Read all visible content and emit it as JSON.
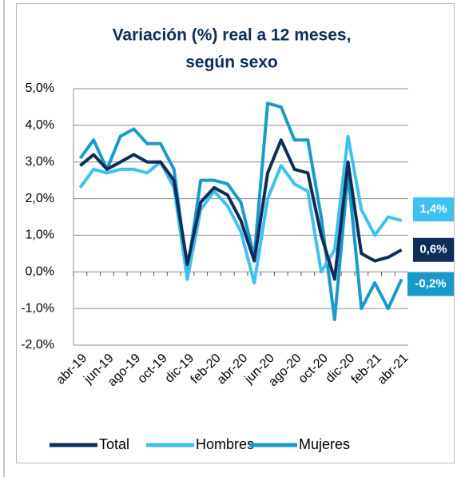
{
  "chart_data": {
    "type": "line",
    "title": [
      "Variación (%) real a 12 meses,",
      "según sexo"
    ],
    "categories": [
      "abr-19",
      null,
      "jun-19",
      null,
      "ago-19",
      null,
      "oct-19",
      null,
      "dic-19",
      null,
      "feb-20",
      null,
      "abr-20",
      null,
      "jun-20",
      null,
      "ago-20",
      null,
      "oct-20",
      null,
      "dic-20",
      null,
      "feb-21",
      null,
      "abr-21"
    ],
    "series": [
      {
        "name": "Total",
        "color": "#0d2d5a",
        "values": [
          2.9,
          3.2,
          2.8,
          3.0,
          3.2,
          3.0,
          3.0,
          2.5,
          0.2,
          1.9,
          2.3,
          2.1,
          1.4,
          0.3,
          2.7,
          3.6,
          2.8,
          2.7,
          1.0,
          -0.2,
          3.0,
          0.5,
          0.3,
          0.4,
          0.6
        ],
        "value_labels": [
          null,
          null,
          null,
          null,
          null,
          null,
          null,
          null,
          null,
          null,
          null,
          null,
          null,
          null,
          null,
          null,
          null,
          null,
          null,
          null,
          null,
          null,
          null,
          null,
          "0,6%"
        ]
      },
      {
        "name": "Hombres",
        "color": "#3fc1f0",
        "values": [
          2.3,
          2.8,
          2.7,
          2.8,
          2.8,
          2.7,
          3.0,
          2.3,
          -0.2,
          1.7,
          2.2,
          1.8,
          1.1,
          -0.3,
          2.0,
          2.9,
          2.4,
          2.2,
          0.0,
          0.6,
          3.7,
          1.7,
          1.0,
          1.5,
          1.4
        ],
        "value_labels": [
          null,
          null,
          null,
          null,
          null,
          null,
          null,
          null,
          null,
          null,
          null,
          null,
          null,
          null,
          null,
          null,
          null,
          null,
          null,
          null,
          null,
          null,
          null,
          null,
          "1,4%"
        ]
      },
      {
        "name": "Mujeres",
        "color": "#1a9ac9",
        "values": [
          3.1,
          3.6,
          2.8,
          3.7,
          3.9,
          3.5,
          3.5,
          2.8,
          0.0,
          2.5,
          2.5,
          2.4,
          1.9,
          0.4,
          4.6,
          4.5,
          3.6,
          3.6,
          1.5,
          -1.3,
          2.7,
          -1.0,
          -0.3,
          -1.0,
          -0.2
        ],
        "value_labels": [
          null,
          null,
          null,
          null,
          null,
          null,
          null,
          null,
          null,
          null,
          null,
          null,
          null,
          null,
          null,
          null,
          null,
          null,
          null,
          null,
          null,
          null,
          null,
          null,
          "-0,2%"
        ]
      }
    ],
    "ylim": [
      -2,
      5
    ],
    "yticks": [
      {
        "value": -2,
        "label": "-2,0%"
      },
      {
        "value": -1,
        "label": "-1,0%"
      },
      {
        "value": 0,
        "label": "0,0%"
      },
      {
        "value": 1,
        "label": "1,0%"
      },
      {
        "value": 2,
        "label": "2,0%"
      },
      {
        "value": 3,
        "label": "3,0%"
      },
      {
        "value": 4,
        "label": "4,0%"
      },
      {
        "value": 5,
        "label": "5,0%"
      }
    ],
    "grid": true,
    "legend": "bottom"
  }
}
